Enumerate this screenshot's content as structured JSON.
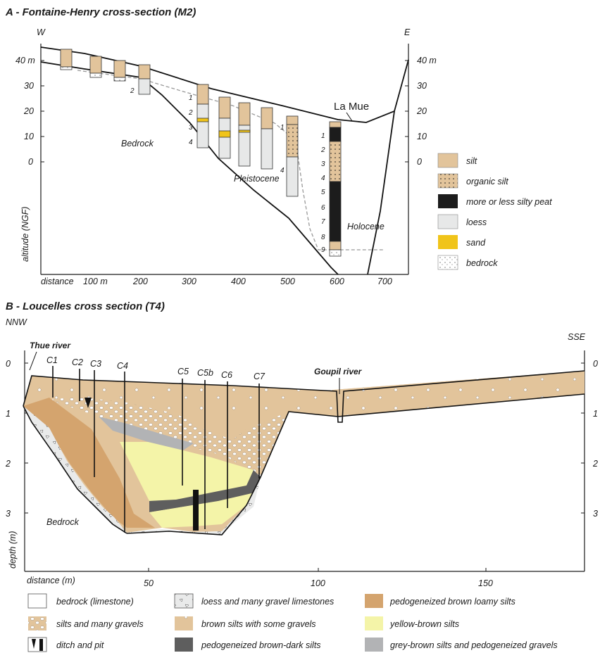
{
  "panel_a": {
    "title": "A - Fontaine-Henry cross-section (M2)",
    "dir_left": "W",
    "dir_right": "E",
    "y_ticks": [
      "40 m",
      "30",
      "20",
      "10",
      "0"
    ],
    "y_ticks_right": [
      "40 m",
      "30",
      "20",
      "10",
      "0"
    ],
    "y_label": "altitude (NGF)",
    "x_label": "distance",
    "x_ticks": [
      "100 m",
      "200",
      "300",
      "400",
      "500",
      "600",
      "700"
    ],
    "labels": {
      "bedrock": "Bedrock",
      "pleistocene": "Pleistocene",
      "holocene": "Holocene",
      "la_mue": "La Mue"
    },
    "core_numbers": [
      "1",
      "2",
      "3",
      "4",
      "5",
      "6",
      "7",
      "8",
      "9"
    ],
    "legend": [
      {
        "label": "silt",
        "color": "#e2c49b"
      },
      {
        "label": "organic silt",
        "color": "#e2c49b"
      },
      {
        "label": "more or less silty peat",
        "color": "#1c1c1c"
      },
      {
        "label": "loess",
        "color": "#e7e8e8"
      },
      {
        "label": "sand",
        "color": "#f0c419"
      },
      {
        "label": "bedrock",
        "color": "#ffffff"
      }
    ]
  },
  "panel_b": {
    "title": "B - Loucelles cross section (T4)",
    "dir_left": "NNW",
    "dir_right": "SSE",
    "y_ticks": [
      "0",
      "1",
      "2",
      "3"
    ],
    "y_label": "depth (m)",
    "x_label": "distance (m)",
    "x_ticks": [
      "50",
      "100",
      "150"
    ],
    "cores": [
      "C1",
      "C2",
      "C3",
      "C4",
      "C5",
      "C5b",
      "C6",
      "C7"
    ],
    "labels": {
      "thue": "Thue river",
      "goupil": "Goupil river",
      "bedrock": "Bedrock"
    },
    "legend": [
      {
        "label": "bedrock (limestone)",
        "color": "#ffffff"
      },
      {
        "label": "loess and many gravel limestones",
        "color": "#e9eaea"
      },
      {
        "label": "pedogeneized brown loamy silts",
        "color": "#d4a46e"
      },
      {
        "label": "silts and many gravels",
        "color": "#e2c49b"
      },
      {
        "label": "brown silts with some gravels",
        "color": "#e2c49b"
      },
      {
        "label": "yellow-brown silts",
        "color": "#f4f4a8"
      },
      {
        "label": "ditch and pit",
        "color": "#1c1c1c"
      },
      {
        "label": "pedogeneized brown-dark silts",
        "color": "#5e5e5e"
      },
      {
        "label": "grey-brown silts and pedogeneized gravels",
        "color": "#b2b3b5"
      }
    ]
  }
}
